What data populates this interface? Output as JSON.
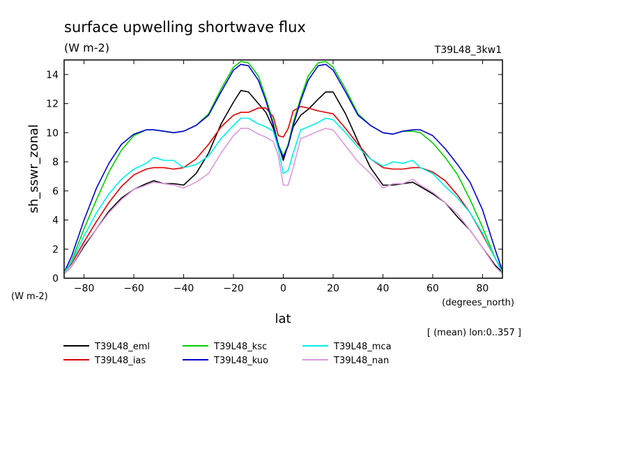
{
  "chart_data": {
    "type": "line",
    "title": "surface upwelling shortwave flux",
    "units_label": "(W m-2)",
    "run_label": "T39L48_3kw1",
    "xlabel": "lat",
    "x_units": "(degrees_north)",
    "ylabel": "sh_sswr_zonal",
    "y_units": "(W m-2)",
    "averaging_note": "[ (mean) lon:0..357 ]",
    "xlim": [
      -88,
      88
    ],
    "ylim": [
      0,
      15
    ],
    "x_ticks": [
      -80,
      -60,
      -40,
      -20,
      0,
      20,
      40,
      60,
      80
    ],
    "y_ticks": [
      0,
      2,
      4,
      6,
      8,
      10,
      12,
      14
    ],
    "x": [
      -88,
      -85,
      -80,
      -75,
      -70,
      -65,
      -60,
      -55,
      -52,
      -48,
      -44,
      -40,
      -35,
      -30,
      -25,
      -20,
      -17,
      -14,
      -10,
      -7,
      -4,
      -2,
      0,
      2,
      4,
      7,
      10,
      14,
      17,
      20,
      25,
      30,
      35,
      40,
      44,
      48,
      52,
      55,
      60,
      65,
      70,
      75,
      80,
      85,
      88
    ],
    "series": [
      {
        "name": "T39L48_eml",
        "color": "#000000",
        "values": [
          0.3,
          0.8,
          2.2,
          3.4,
          4.6,
          5.5,
          6.1,
          6.5,
          6.7,
          6.5,
          6.5,
          6.4,
          7.2,
          8.6,
          10.6,
          12.1,
          12.9,
          12.8,
          12.0,
          11.4,
          10.3,
          9.2,
          8.1,
          9.2,
          10.4,
          11.2,
          11.6,
          12.3,
          12.8,
          12.8,
          11.3,
          9.4,
          7.6,
          6.4,
          6.4,
          6.5,
          6.6,
          6.3,
          5.8,
          5.2,
          4.2,
          3.3,
          2.1,
          0.9,
          0.4
        ]
      },
      {
        "name": "T39L48_ias",
        "color": "#dd0000",
        "values": [
          0.4,
          1.0,
          2.5,
          3.9,
          5.2,
          6.3,
          7.1,
          7.5,
          7.6,
          7.6,
          7.5,
          7.6,
          8.2,
          9.2,
          10.4,
          11.2,
          11.4,
          11.4,
          11.7,
          11.7,
          11.1,
          9.8,
          9.7,
          10.3,
          11.5,
          11.8,
          11.7,
          11.5,
          11.4,
          11.3,
          10.3,
          9.2,
          8.2,
          7.6,
          7.5,
          7.5,
          7.6,
          7.6,
          7.3,
          6.7,
          5.7,
          4.5,
          3.0,
          1.4,
          0.5
        ]
      },
      {
        "name": "T39L48_ksc",
        "color": "#00cc00",
        "values": [
          0.3,
          1.2,
          3.4,
          5.4,
          7.3,
          8.8,
          9.8,
          10.2,
          10.2,
          10.1,
          10.0,
          10.1,
          10.5,
          11.3,
          13.0,
          14.5,
          14.9,
          14.8,
          13.9,
          12.4,
          10.7,
          9.2,
          8.4,
          9.2,
          10.7,
          12.4,
          13.9,
          14.8,
          14.9,
          14.5,
          13.0,
          11.3,
          10.5,
          10.0,
          9.9,
          10.1,
          10.1,
          10.0,
          9.3,
          8.3,
          7.1,
          5.4,
          3.5,
          1.4,
          0.4
        ]
      },
      {
        "name": "T39L48_kuo",
        "color": "#0000cc",
        "values": [
          0.4,
          1.5,
          4.0,
          6.2,
          7.9,
          9.2,
          9.9,
          10.2,
          10.2,
          10.1,
          10.0,
          10.1,
          10.5,
          11.2,
          12.8,
          14.3,
          14.7,
          14.6,
          13.6,
          12.2,
          10.5,
          9.1,
          8.3,
          9.1,
          10.5,
          12.2,
          13.6,
          14.6,
          14.7,
          14.3,
          12.8,
          11.2,
          10.5,
          10.0,
          9.9,
          10.1,
          10.2,
          10.2,
          9.8,
          8.9,
          7.8,
          6.6,
          4.7,
          2.0,
          0.5
        ]
      },
      {
        "name": "T39L48_mca",
        "color": "#00eeee",
        "values": [
          0.4,
          1.1,
          2.9,
          4.5,
          5.8,
          6.8,
          7.5,
          7.9,
          8.3,
          8.1,
          8.1,
          7.6,
          7.8,
          8.4,
          9.6,
          10.5,
          11.0,
          11.0,
          10.6,
          10.4,
          10.1,
          8.9,
          7.2,
          7.4,
          8.6,
          10.2,
          10.4,
          10.7,
          11.0,
          10.9,
          10.0,
          9.0,
          8.2,
          7.7,
          8.0,
          7.9,
          8.1,
          7.6,
          7.2,
          6.3,
          5.5,
          4.5,
          3.1,
          1.4,
          0.4
        ]
      },
      {
        "name": "T39L48_nan",
        "color": "#dd99dd",
        "values": [
          0.3,
          0.8,
          2.3,
          3.4,
          4.5,
          5.4,
          6.1,
          6.4,
          6.6,
          6.5,
          6.4,
          6.2,
          6.6,
          7.2,
          8.6,
          9.8,
          10.3,
          10.3,
          9.9,
          9.7,
          9.4,
          8.4,
          6.4,
          6.4,
          7.6,
          9.6,
          9.8,
          10.1,
          10.3,
          10.2,
          9.1,
          8.0,
          7.2,
          6.2,
          6.5,
          6.5,
          6.8,
          6.4,
          5.9,
          5.2,
          4.4,
          3.3,
          2.1,
          0.8,
          0.3
        ]
      }
    ]
  }
}
